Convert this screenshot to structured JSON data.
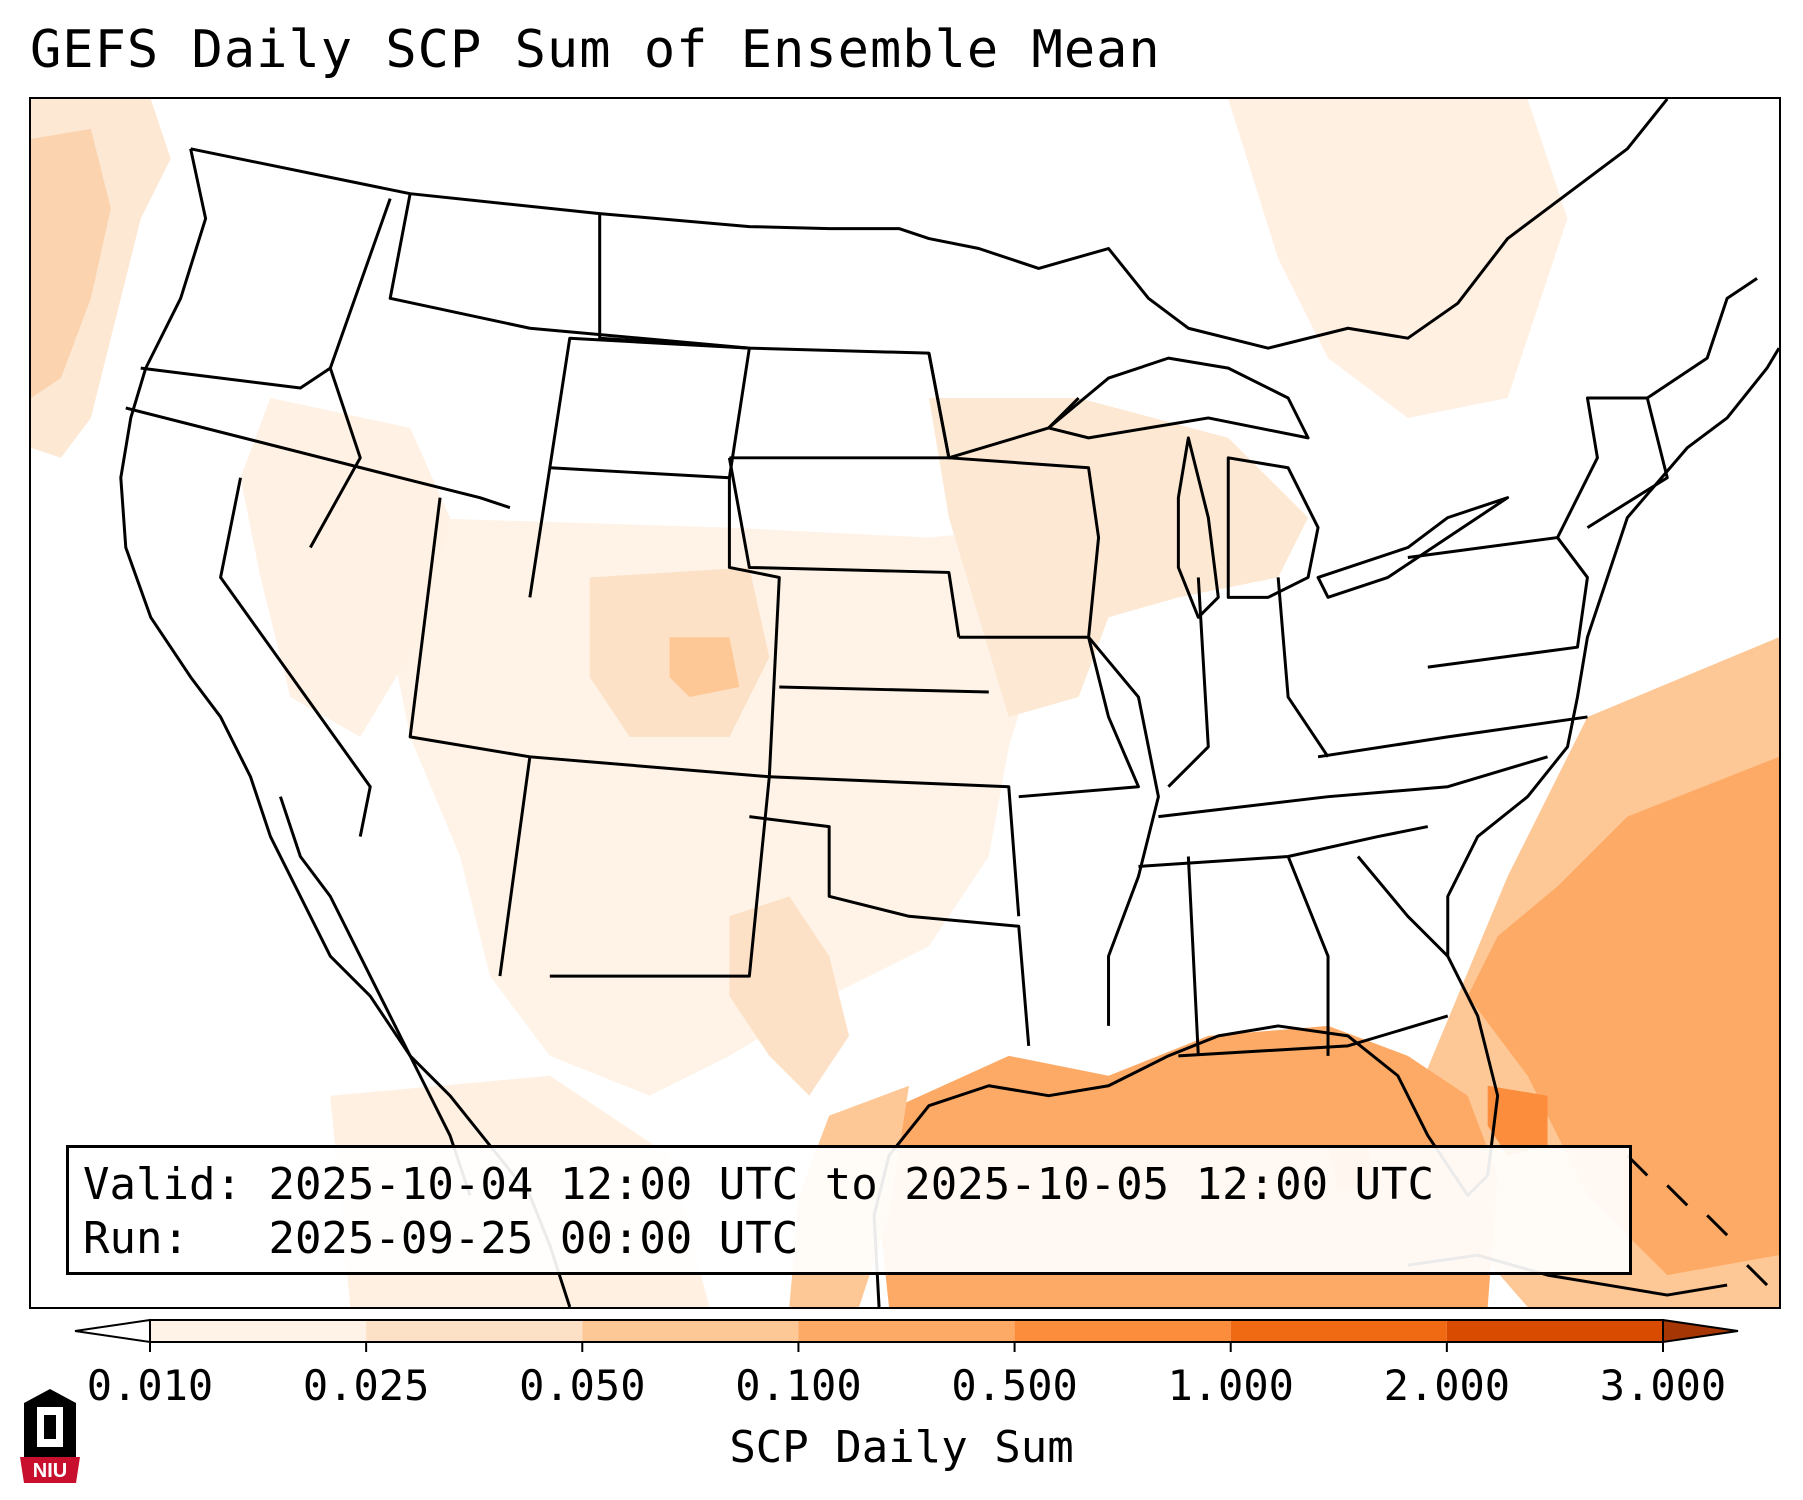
{
  "title": "GEFS Daily SCP Sum of Ensemble Mean",
  "info": {
    "valid_label": "Valid:",
    "valid_value": "2025-10-04 12:00 UTC to 2025-10-05 12:00 UTC",
    "run_label": "Run:",
    "run_value": "2025-09-25 00:00 UTC"
  },
  "colorbar": {
    "label": "SCP Daily Sum",
    "ticks": [
      "0.010",
      "0.025",
      "0.050",
      "0.100",
      "0.500",
      "1.000",
      "2.000",
      "3.000"
    ],
    "colors": [
      "#fff2e6",
      "#fde1c6",
      "#fdc896",
      "#fdaa66",
      "#fb8d3d",
      "#f06913",
      "#d84b01"
    ],
    "extend": "both"
  },
  "logo": {
    "text": "NIU",
    "colors": {
      "red": "#c8102e",
      "black": "#000000"
    }
  },
  "map": {
    "projection": "lambert-conformal CONUS",
    "field_colors": {
      "faint": "#fff6ee",
      "light": "#fde1c6",
      "medium": "#fdc896",
      "strong": "#fdaa66",
      "peak": "#fb8d3d"
    }
  }
}
